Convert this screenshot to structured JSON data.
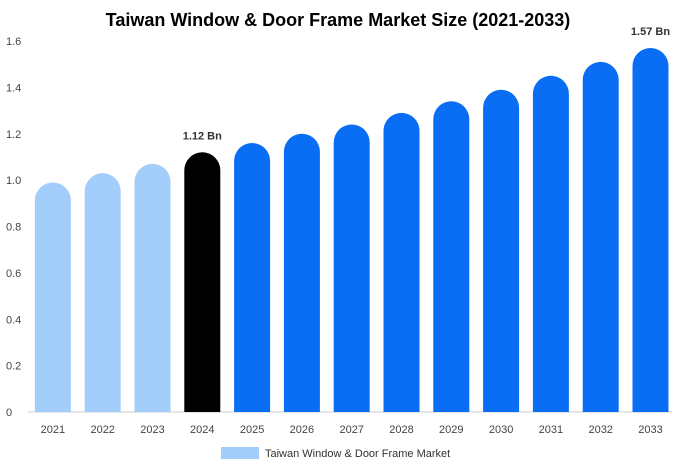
{
  "chart_data": {
    "type": "bar",
    "title": "Taiwan Window & Door Frame Market Size (2021-2033)",
    "xlabel": "",
    "ylabel": "",
    "ylim": [
      0,
      1.6
    ],
    "yticks": [
      "0",
      "0.2",
      "0.4",
      "0.6",
      "0.8",
      "1.0",
      "1.2",
      "1.4",
      "1.6"
    ],
    "categories": [
      "2021",
      "2022",
      "2023",
      "2024",
      "2025",
      "2026",
      "2027",
      "2028",
      "2029",
      "2030",
      "2031",
      "2032",
      "2033"
    ],
    "series": [
      {
        "name": "Taiwan Window & Door Frame Market",
        "values": [
          0.99,
          1.03,
          1.07,
          1.12,
          1.16,
          1.2,
          1.24,
          1.29,
          1.34,
          1.39,
          1.45,
          1.51,
          1.57
        ]
      }
    ],
    "bar_colors": {
      "historical": "#a3cdfb",
      "base": "#000000",
      "forecast": "#0a6ef5"
    },
    "bar_periods": [
      "historical",
      "historical",
      "historical",
      "base",
      "forecast",
      "forecast",
      "forecast",
      "forecast",
      "forecast",
      "forecast",
      "forecast",
      "forecast",
      "forecast"
    ],
    "data_labels": [
      {
        "category": "2024",
        "text": "1.12 Bn"
      },
      {
        "category": "2033",
        "text": "1.57 Bn"
      }
    ],
    "grid": false,
    "legend": {
      "position": "bottom",
      "label": "Taiwan Window & Door Frame Market",
      "color": "#a3cdfb"
    }
  }
}
